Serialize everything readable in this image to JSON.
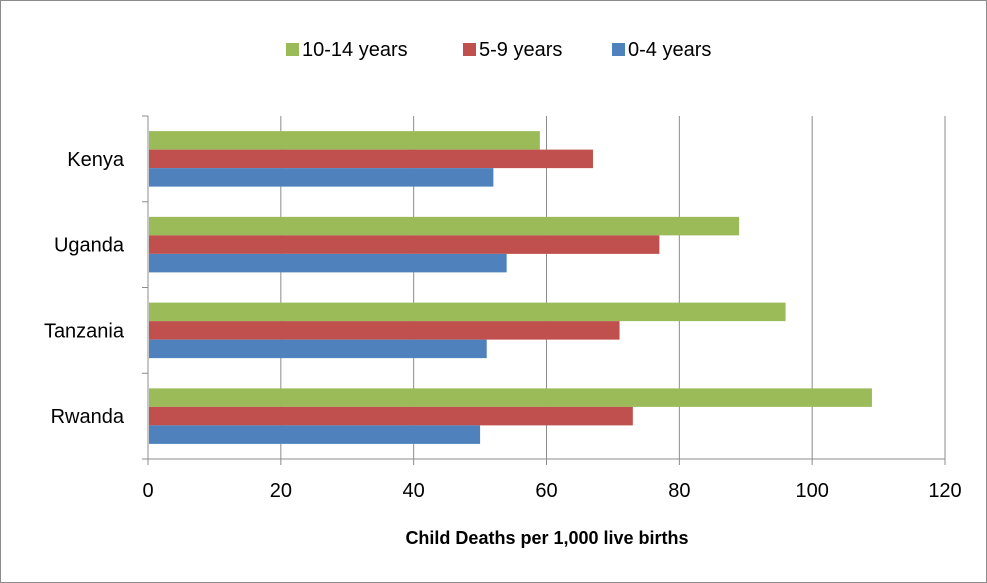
{
  "chart_data": {
    "type": "bar",
    "orientation": "horizontal",
    "categories": [
      "Kenya",
      "Uganda",
      "Tanzania",
      "Rwanda"
    ],
    "series": [
      {
        "name": "10-14 years",
        "color": "#9bbb59",
        "values": [
          59,
          89,
          96,
          109
        ]
      },
      {
        "name": "5-9 years",
        "color": "#c0504d",
        "values": [
          67,
          77,
          71,
          73
        ]
      },
      {
        "name": "0-4 years",
        "color": "#4f81bd",
        "values": [
          52,
          54,
          51,
          50
        ]
      }
    ],
    "xlabel": "Child Deaths per 1,000 live births",
    "ylabel": "",
    "xlim": [
      0,
      120
    ],
    "xticks": [
      "0",
      "20",
      "40",
      "60",
      "80",
      "100",
      "120"
    ],
    "grid": "vertical",
    "legend_position": "top"
  }
}
